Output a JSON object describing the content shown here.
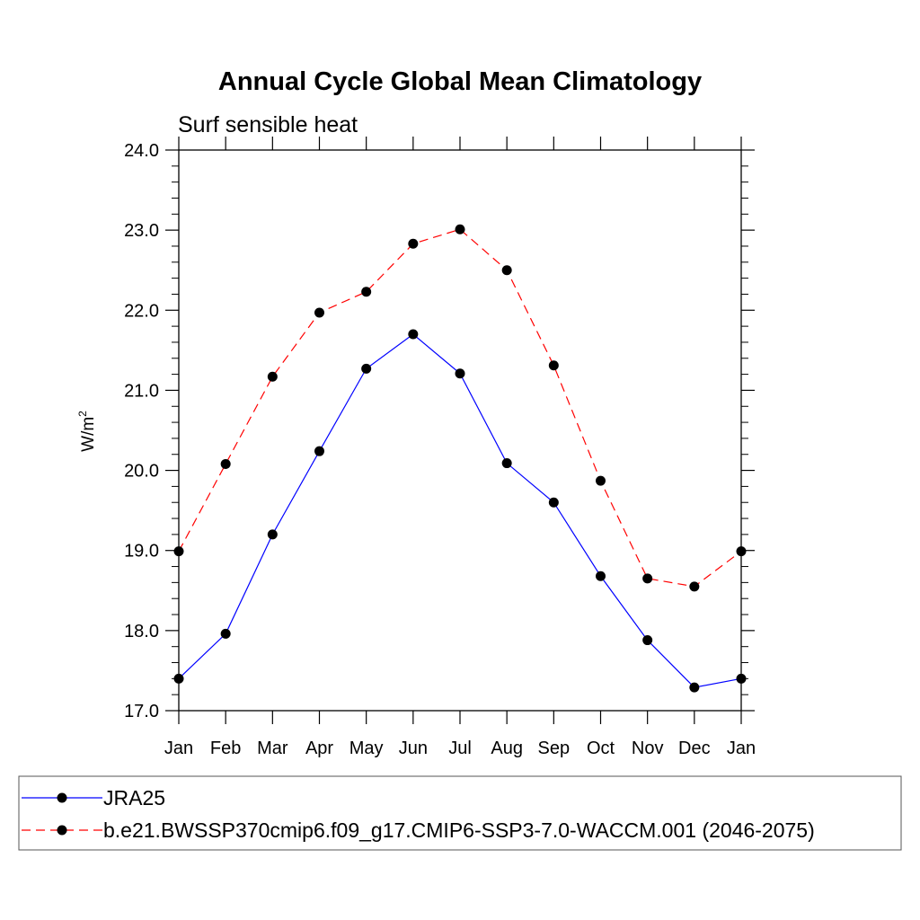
{
  "chart_data": {
    "type": "line",
    "title": "Annual Cycle Global Mean Climatology",
    "subtitle": "Surf sensible heat",
    "xlabel": "",
    "ylabel": "W/m",
    "ylabel_sup": "2",
    "categories": [
      "Jan",
      "Feb",
      "Mar",
      "Apr",
      "May",
      "Jun",
      "Jul",
      "Aug",
      "Sep",
      "Oct",
      "Nov",
      "Dec",
      "Jan"
    ],
    "ylim": [
      17.0,
      24.0
    ],
    "yticks": [
      "17.0",
      "18.0",
      "19.0",
      "20.0",
      "21.0",
      "22.0",
      "23.0",
      "24.0"
    ],
    "grid": false,
    "legend_position": "bottom",
    "series": [
      {
        "name": "JRA25",
        "color": "#0000ff",
        "line_style": "solid",
        "marker": "filled-circle",
        "values": [
          17.4,
          17.96,
          19.2,
          20.24,
          21.27,
          21.7,
          21.21,
          20.09,
          19.6,
          18.68,
          17.88,
          17.29,
          17.4
        ]
      },
      {
        "name": "b.e21.BWSSP370cmip6.f09_g17.CMIP6-SSP3-7.0-WACCM.001 (2046-2075)",
        "color": "#ff0000",
        "line_style": "dashed",
        "marker": "filled-circle",
        "values": [
          18.99,
          20.08,
          21.17,
          21.97,
          22.23,
          22.83,
          23.01,
          22.5,
          21.31,
          19.87,
          18.65,
          18.55,
          18.99
        ]
      }
    ]
  }
}
